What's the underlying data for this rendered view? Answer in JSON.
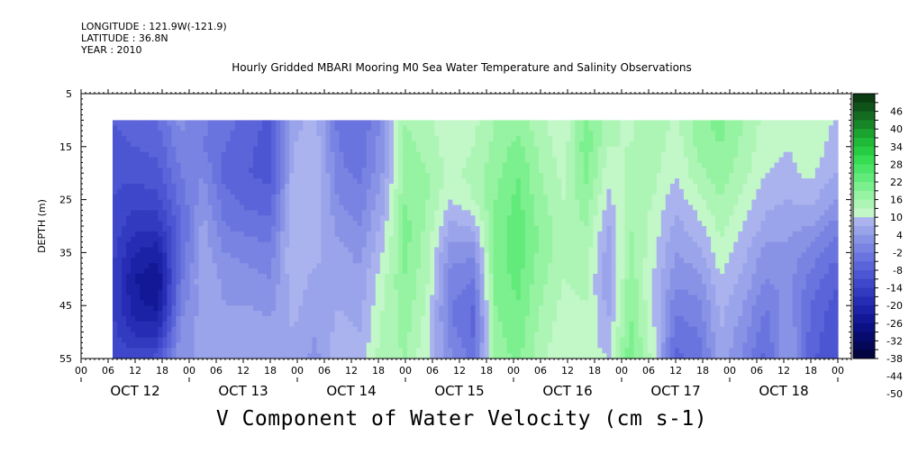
{
  "header": {
    "longitude": "LONGITUDE : 121.9W(-121.9)",
    "latitude": "LATITUDE : 36.8N",
    "year": "YEAR : 2010"
  },
  "chart_data": {
    "type": "heatmap",
    "title": "Hourly Gridded MBARI Mooring M0 Sea Water Temperature and Salinity Observations",
    "variable_title": "V Component of Water Velocity (cm s-1)",
    "ylabel": "DEPTH (m)",
    "y_axis": {
      "range": [
        5,
        55
      ],
      "inverted": true,
      "ticks": [
        5,
        15,
        25,
        35,
        45,
        55
      ]
    },
    "x_axis": {
      "hour_labels": [
        "00",
        "06",
        "12",
        "18",
        "00",
        "06",
        "12",
        "18",
        "00",
        "06",
        "12",
        "18",
        "00",
        "06",
        "12",
        "18",
        "00",
        "06",
        "12",
        "18",
        "00",
        "06",
        "12",
        "18",
        "00",
        "06",
        "12",
        "18",
        "00"
      ],
      "day_labels": [
        "OCT 12",
        "OCT 13",
        "OCT 14",
        "OCT 15",
        "OCT 16",
        "OCT 17",
        "OCT 18"
      ]
    },
    "data_extent": {
      "depth_min_m": 10,
      "depth_max_m": 55,
      "start": "OCT 12 07:00",
      "end": "OCT 19 00:00"
    },
    "colorbar": {
      "labels": [
        "46",
        "40",
        "34",
        "28",
        "22",
        "16",
        "10",
        "4",
        "-2",
        "-8",
        "-14",
        "-20",
        "-26",
        "-32",
        "-38",
        "-44",
        "-50"
      ],
      "levels": [
        52,
        49,
        46,
        43,
        40,
        37,
        34,
        31,
        28,
        25,
        22,
        19,
        16,
        13,
        10,
        7,
        4,
        1,
        -2,
        -5,
        -8,
        -11,
        -14,
        -17,
        -20,
        -23,
        -26,
        -29,
        -32,
        -35,
        -38,
        -41,
        -44,
        -47,
        -50
      ],
      "colors": [
        "#0b3d12",
        "#0f521a",
        "#136c20",
        "#178627",
        "#1aa32f",
        "#1fba37",
        "#27cc42",
        "#36dc52",
        "#4ae466",
        "#62ea7a",
        "#7cef8e",
        "#95f3a2",
        "#adf5b5",
        "#c2f7c8",
        "#aab3ee",
        "#9aa4ea",
        "#8893e6",
        "#7883e2",
        "#6a74de",
        "#5b64d8",
        "#4d56d2",
        "#3f47ca",
        "#323ac0",
        "#262db4",
        "#1b22a6",
        "#121896",
        "#0b1184",
        "#070b6e",
        "#050859",
        "#030540"
      ]
    },
    "columns": [
      {
        "day": 12.29,
        "v": [
          -8,
          -9,
          -10,
          -11,
          -12,
          -13,
          -14,
          -14,
          -13,
          -11
        ]
      },
      {
        "day": 12.5,
        "v": [
          -6,
          -8,
          -10,
          -13,
          -16,
          -20,
          -23,
          -22,
          -18,
          -12
        ]
      },
      {
        "day": 12.71,
        "v": [
          -5,
          -7,
          -9,
          -12,
          -16,
          -22,
          -26,
          -24,
          -18,
          -10
        ]
      },
      {
        "day": 12.92,
        "v": [
          2,
          0,
          -2,
          -4,
          -6,
          -5,
          -3,
          -1,
          2,
          4
        ]
      },
      {
        "day": 13.13,
        "v": [
          -1,
          -2,
          1,
          3,
          5,
          6,
          7,
          6,
          5,
          4
        ]
      },
      {
        "day": 13.33,
        "v": [
          -4,
          -5,
          -6,
          -4,
          -2,
          1,
          3,
          4,
          5,
          6
        ]
      },
      {
        "day": 13.54,
        "v": [
          -6,
          -7,
          -8,
          -6,
          -3,
          0,
          2,
          4,
          6,
          7
        ]
      },
      {
        "day": 13.75,
        "v": [
          -9,
          -10,
          -9,
          -7,
          -4,
          -1,
          1,
          3,
          5,
          6
        ]
      },
      {
        "day": 13.96,
        "v": [
          6,
          7,
          8,
          9,
          10,
          10,
          9,
          8,
          7,
          6
        ]
      },
      {
        "day": 14.17,
        "v": [
          8,
          9,
          10,
          10,
          9,
          8,
          6,
          5,
          4,
          3
        ]
      },
      {
        "day": 14.38,
        "v": [
          -3,
          -2,
          -1,
          1,
          3,
          5,
          6,
          7,
          8,
          9
        ]
      },
      {
        "day": 14.58,
        "v": [
          -5,
          -4,
          -3,
          -1,
          1,
          3,
          5,
          6,
          7,
          8
        ]
      },
      {
        "day": 14.79,
        "v": [
          2,
          3,
          4,
          6,
          8,
          10,
          12,
          13,
          14,
          15
        ]
      },
      {
        "day": 15.0,
        "v": [
          16,
          17,
          18,
          19,
          20,
          20,
          19,
          18,
          17,
          16
        ]
      },
      {
        "day": 15.21,
        "v": [
          14,
          15,
          16,
          16,
          15,
          14,
          13,
          12,
          11,
          10
        ]
      },
      {
        "day": 15.42,
        "v": [
          10,
          11,
          12,
          10,
          6,
          2,
          0,
          -2,
          -1,
          2
        ]
      },
      {
        "day": 15.63,
        "v": [
          12,
          13,
          14,
          13,
          8,
          2,
          -2,
          -5,
          -6,
          -3
        ]
      },
      {
        "day": 15.83,
        "v": [
          16,
          17,
          18,
          19,
          20,
          20,
          20,
          19,
          18,
          17
        ]
      },
      {
        "day": 16.04,
        "v": [
          18,
          20,
          22,
          23,
          24,
          24,
          23,
          22,
          21,
          20
        ]
      },
      {
        "day": 16.25,
        "v": [
          14,
          15,
          16,
          17,
          18,
          18,
          17,
          16,
          15,
          14
        ]
      },
      {
        "day": 16.46,
        "v": [
          10,
          11,
          12,
          13,
          14,
          14,
          13,
          12,
          11,
          10
        ]
      },
      {
        "day": 16.67,
        "v": [
          20,
          21,
          20,
          18,
          16,
          15,
          14,
          13,
          12,
          11
        ]
      },
      {
        "day": 16.88,
        "v": [
          14,
          13,
          11,
          9,
          7,
          5,
          4,
          6,
          8,
          10
        ]
      },
      {
        "day": 17.08,
        "v": [
          12,
          13,
          14,
          15,
          16,
          17,
          18,
          19,
          20,
          21
        ]
      },
      {
        "day": 17.29,
        "v": [
          16,
          15,
          14,
          13,
          12,
          11,
          10,
          10,
          11,
          12
        ]
      },
      {
        "day": 17.5,
        "v": [
          12,
          11,
          10,
          8,
          6,
          4,
          2,
          -1,
          -4,
          -6
        ]
      },
      {
        "day": 17.71,
        "v": [
          18,
          17,
          15,
          12,
          9,
          6,
          3,
          0,
          -2,
          -4
        ]
      },
      {
        "day": 17.92,
        "v": [
          20,
          19,
          18,
          16,
          14,
          12,
          10,
          8,
          7,
          6
        ]
      },
      {
        "day": 18.13,
        "v": [
          16,
          15,
          14,
          12,
          10,
          8,
          6,
          4,
          2,
          0
        ]
      },
      {
        "day": 18.33,
        "v": [
          12,
          11,
          10,
          8,
          6,
          3,
          1,
          -2,
          -4,
          -6
        ]
      },
      {
        "day": 18.54,
        "v": [
          10,
          10,
          9,
          7,
          5,
          3,
          2,
          3,
          4,
          5
        ]
      },
      {
        "day": 18.75,
        "v": [
          12,
          12,
          11,
          8,
          4,
          0,
          -3,
          -5,
          -6,
          -7
        ]
      },
      {
        "day": 18.96,
        "v": [
          10,
          9,
          7,
          4,
          0,
          -4,
          -7,
          -9,
          -10,
          -11
        ]
      }
    ]
  }
}
